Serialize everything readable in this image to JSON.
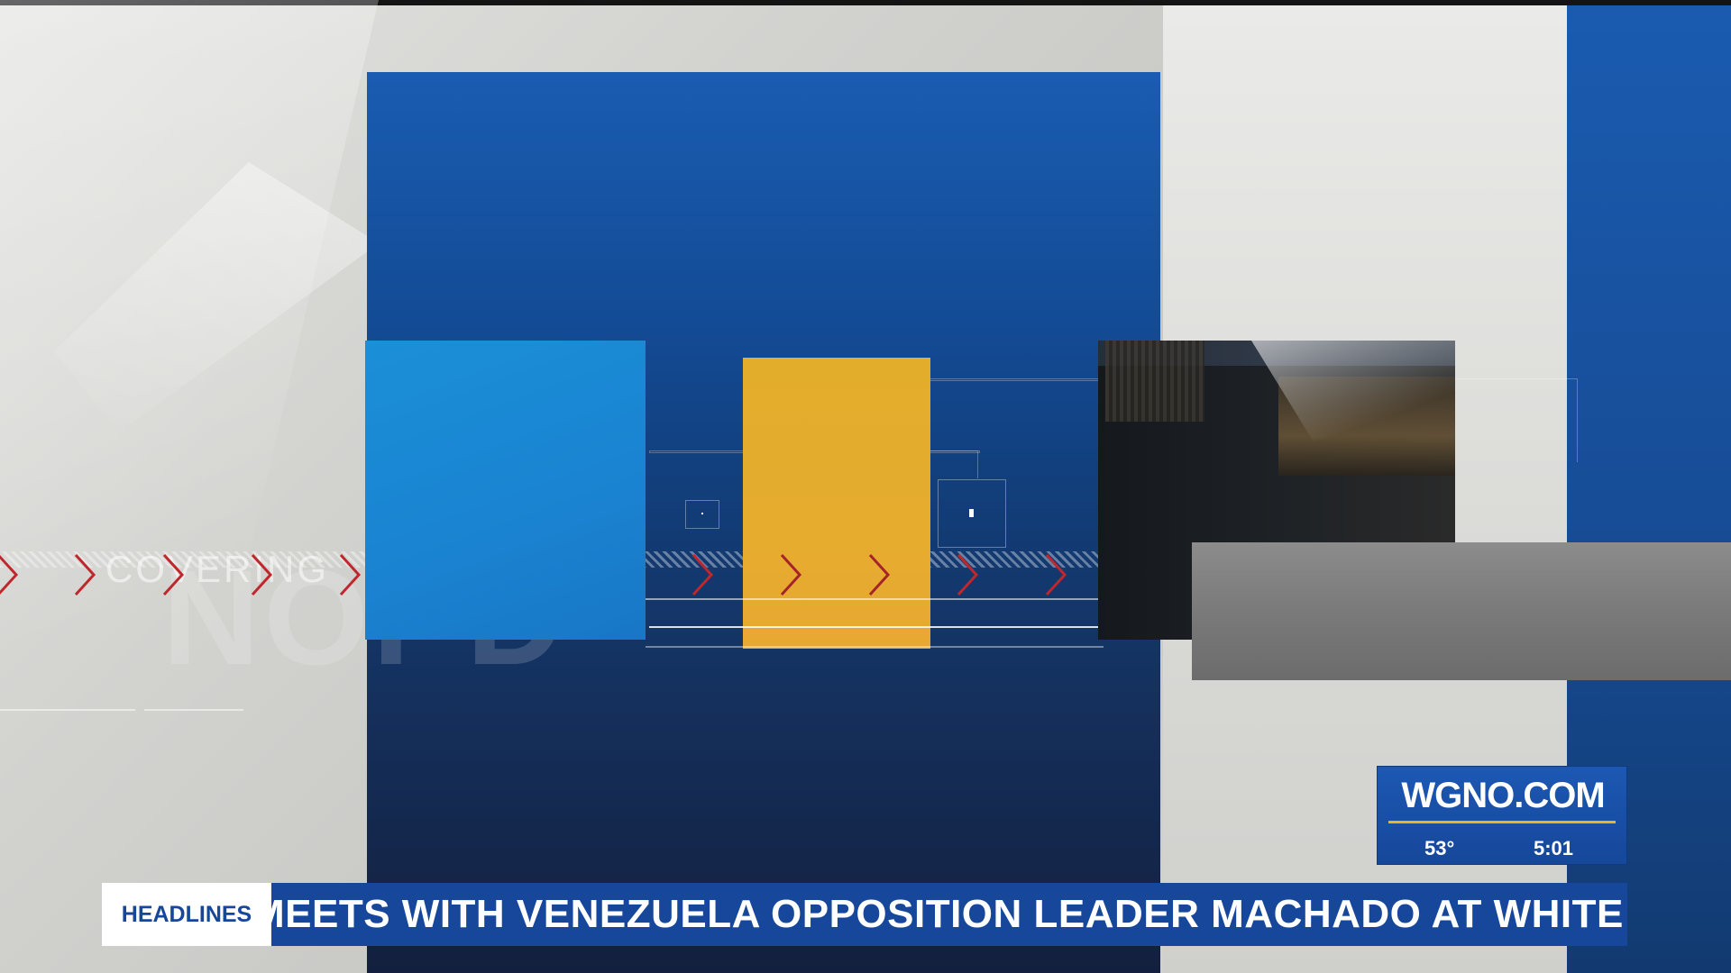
{
  "station": {
    "website": "WGNO.COM",
    "temperature": "53°",
    "time": "5:01",
    "brand_blue": "#16479a",
    "accent_gold": "#e8b428"
  },
  "ticker": {
    "label": "HEADLINES",
    "text": "MEETS WITH VENEZUELA OPPOSITION LEADER MACHADO AT WHITE"
  },
  "graphics": {
    "watermark_word": "COVERING",
    "watermark_big": "NOPD",
    "chevron_color": "#c0272d",
    "chevron_icon": "chevron-right-icon"
  }
}
